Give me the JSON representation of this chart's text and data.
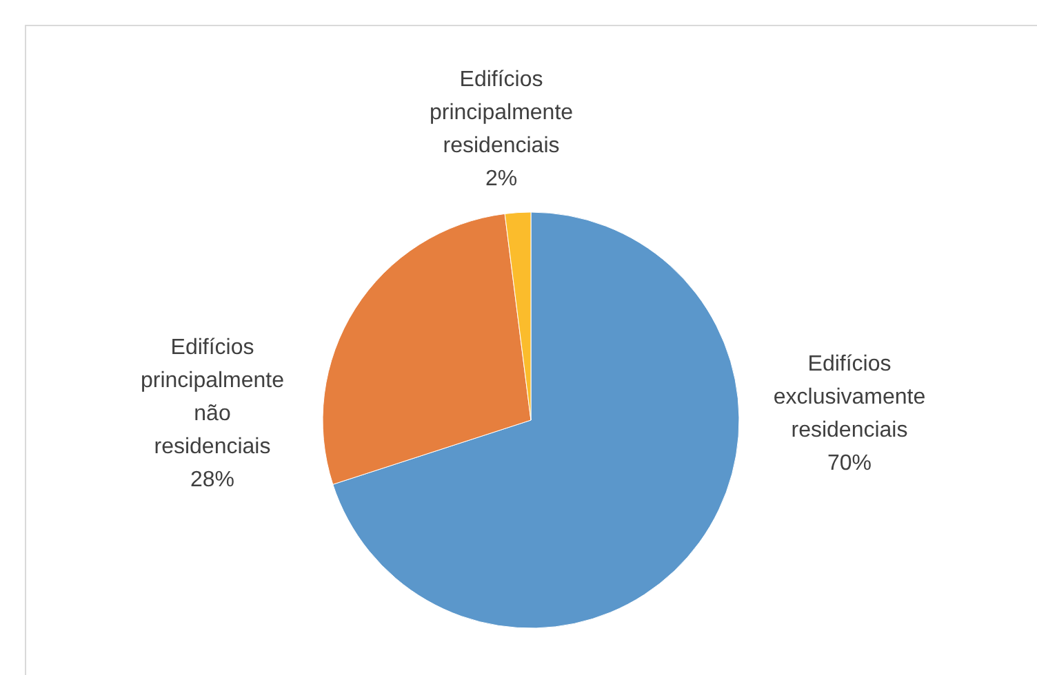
{
  "chart_data": {
    "type": "pie",
    "categories": [
      "Edifícios exclusivamente residenciais",
      "Edifícios principalmente não residenciais",
      "Edifícios principalmente residenciais"
    ],
    "values": [
      70,
      28,
      2
    ],
    "colors": [
      "#5b97cb",
      "#e67f3e",
      "#fbbc2c"
    ],
    "value_labels": [
      "70%",
      "28%",
      "2%"
    ]
  }
}
